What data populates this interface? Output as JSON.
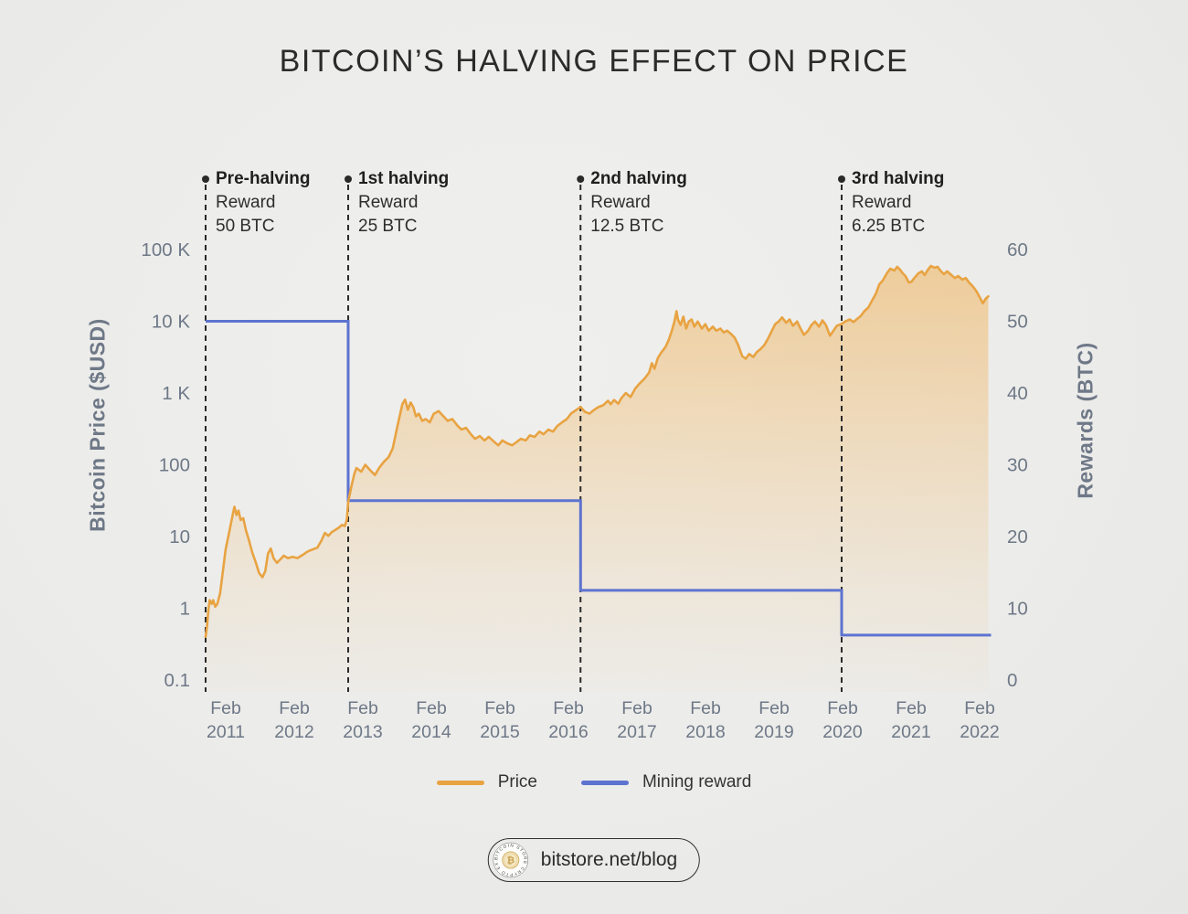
{
  "title": "BITCOIN’S HALVING EFFECT ON PRICE",
  "colors": {
    "background": "#ECECEA",
    "title_text": "#2B2B2B",
    "axis_text": "#6E7887",
    "annotation_text": "#2D2D2D",
    "price_line": "#E8A342",
    "price_fill": "#F0B054",
    "reward_line": "#5D73D0",
    "halving_line": "#2A2A2A",
    "footer_border": "#2F2F2F",
    "coin_gold": "#D2AF62"
  },
  "halvings": [
    {
      "title": "Pre-halving",
      "reward_label": "Reward",
      "amount": "50 BTC",
      "year": 2010.79,
      "reward_btc": 50
    },
    {
      "title": "1st halving",
      "reward_label": "Reward",
      "amount": "25 BTC",
      "year": 2012.87,
      "reward_btc": 25
    },
    {
      "title": "2nd halving",
      "reward_label": "Reward",
      "amount": "12.5 BTC",
      "year": 2016.26,
      "reward_btc": 12.5
    },
    {
      "title": "3rd halving",
      "reward_label": "Reward",
      "amount": "6.25 BTC",
      "year": 2020.07,
      "reward_btc": 6.25
    }
  ],
  "legend": {
    "items": [
      {
        "label": "Price",
        "color": "#E8A342"
      },
      {
        "label": "Mining reward",
        "color": "#5D73D0"
      }
    ]
  },
  "footer": {
    "url": "bitstore.net/blog",
    "logo_ring_text": "BITCOIN STORE CRYPTO EXCHANGE",
    "logo_symbol": "₿"
  },
  "chart_data": {
    "type": "line",
    "title": "BITCOIN’S HALVING EFFECT ON PRICE",
    "grid": false,
    "legend_position": "bottom",
    "x_axis": {
      "month_label": "Feb",
      "years": [
        2011,
        2012,
        2013,
        2014,
        2015,
        2016,
        2017,
        2018,
        2019,
        2020,
        2021,
        2022
      ],
      "range_years": [
        2010.79,
        2022.25
      ]
    },
    "y_left": {
      "label": "Bitcoin Price ($USD)",
      "scale": "log",
      "tick_values": [
        100000,
        10000,
        1000,
        100,
        10,
        1,
        0.1
      ],
      "tick_labels": [
        "100 K",
        "10 K",
        "1 K",
        "100",
        "10",
        "1",
        "0.1"
      ],
      "range": [
        0.1,
        100000
      ]
    },
    "y_right": {
      "label": "Rewards (BTC)",
      "scale": "linear",
      "tick_values": [
        60,
        50,
        40,
        30,
        20,
        10,
        0
      ],
      "range": [
        0,
        60
      ]
    },
    "series": [
      {
        "name": "Price",
        "axis": "left",
        "type": "area-line",
        "color": "#E8A342",
        "points": [
          [
            2010.79,
            0.4
          ],
          [
            2010.81,
            0.55
          ],
          [
            2010.83,
            0.95
          ],
          [
            2010.85,
            1.3
          ],
          [
            2010.88,
            1.15
          ],
          [
            2010.9,
            1.3
          ],
          [
            2010.93,
            1.05
          ],
          [
            2010.96,
            1.15
          ],
          [
            2011.0,
            1.6
          ],
          [
            2011.04,
            3.2
          ],
          [
            2011.08,
            6.5
          ],
          [
            2011.13,
            11
          ],
          [
            2011.17,
            17
          ],
          [
            2011.21,
            26
          ],
          [
            2011.24,
            20
          ],
          [
            2011.27,
            23
          ],
          [
            2011.3,
            17
          ],
          [
            2011.34,
            18
          ],
          [
            2011.38,
            12
          ],
          [
            2011.42,
            9
          ],
          [
            2011.47,
            6
          ],
          [
            2011.52,
            4.4
          ],
          [
            2011.57,
            3.1
          ],
          [
            2011.62,
            2.7
          ],
          [
            2011.66,
            3.3
          ],
          [
            2011.7,
            5.8
          ],
          [
            2011.74,
            6.8
          ],
          [
            2011.78,
            5.0
          ],
          [
            2011.83,
            4.3
          ],
          [
            2011.88,
            4.8
          ],
          [
            2011.93,
            5.4
          ],
          [
            2011.99,
            5.0
          ],
          [
            2012.06,
            5.2
          ],
          [
            2012.13,
            5.0
          ],
          [
            2012.2,
            5.5
          ],
          [
            2012.28,
            6.2
          ],
          [
            2012.35,
            6.6
          ],
          [
            2012.42,
            7.0
          ],
          [
            2012.48,
            8.8
          ],
          [
            2012.53,
            11.2
          ],
          [
            2012.58,
            10.2
          ],
          [
            2012.63,
            11.5
          ],
          [
            2012.68,
            12.3
          ],
          [
            2012.73,
            13.2
          ],
          [
            2012.78,
            14.5
          ],
          [
            2012.82,
            14.0
          ],
          [
            2012.85,
            17
          ],
          [
            2012.87,
            30
          ],
          [
            2012.92,
            52
          ],
          [
            2012.96,
            75
          ],
          [
            2012.99,
            90
          ],
          [
            2013.06,
            80
          ],
          [
            2013.12,
            100
          ],
          [
            2013.19,
            84
          ],
          [
            2013.26,
            72
          ],
          [
            2013.32,
            90
          ],
          [
            2013.39,
            110
          ],
          [
            2013.46,
            128
          ],
          [
            2013.52,
            170
          ],
          [
            2013.59,
            350
          ],
          [
            2013.66,
            700
          ],
          [
            2013.7,
            810
          ],
          [
            2013.74,
            585
          ],
          [
            2013.78,
            740
          ],
          [
            2013.82,
            635
          ],
          [
            2013.86,
            473
          ],
          [
            2013.9,
            515
          ],
          [
            2013.95,
            410
          ],
          [
            2014.0,
            434
          ],
          [
            2014.06,
            390
          ],
          [
            2014.12,
            515
          ],
          [
            2014.19,
            560
          ],
          [
            2014.26,
            473
          ],
          [
            2014.32,
            410
          ],
          [
            2014.39,
            434
          ],
          [
            2014.46,
            355
          ],
          [
            2014.52,
            310
          ],
          [
            2014.59,
            327
          ],
          [
            2014.66,
            266
          ],
          [
            2014.72,
            230
          ],
          [
            2014.79,
            251
          ],
          [
            2014.86,
            218
          ],
          [
            2014.92,
            245
          ],
          [
            2014.99,
            213
          ],
          [
            2015.06,
            187
          ],
          [
            2015.12,
            218
          ],
          [
            2015.19,
            199
          ],
          [
            2015.26,
            187
          ],
          [
            2015.32,
            205
          ],
          [
            2015.39,
            230
          ],
          [
            2015.46,
            218
          ],
          [
            2015.52,
            257
          ],
          [
            2015.59,
            245
          ],
          [
            2015.66,
            290
          ],
          [
            2015.72,
            266
          ],
          [
            2015.79,
            308
          ],
          [
            2015.86,
            290
          ],
          [
            2015.92,
            347
          ],
          [
            2015.99,
            390
          ],
          [
            2016.06,
            434
          ],
          [
            2016.12,
            515
          ],
          [
            2016.19,
            575
          ],
          [
            2016.26,
            640
          ],
          [
            2016.32,
            550
          ],
          [
            2016.39,
            515
          ],
          [
            2016.46,
            585
          ],
          [
            2016.52,
            637
          ],
          [
            2016.59,
            675
          ],
          [
            2016.66,
            780
          ],
          [
            2016.7,
            700
          ],
          [
            2016.75,
            800
          ],
          [
            2016.81,
            710
          ],
          [
            2016.86,
            855
          ],
          [
            2016.92,
            1000
          ],
          [
            2016.99,
            880
          ],
          [
            2017.06,
            1160
          ],
          [
            2017.12,
            1350
          ],
          [
            2017.19,
            1570
          ],
          [
            2017.26,
            1930
          ],
          [
            2017.3,
            2600
          ],
          [
            2017.34,
            2180
          ],
          [
            2017.39,
            3100
          ],
          [
            2017.44,
            3700
          ],
          [
            2017.5,
            4400
          ],
          [
            2017.55,
            5600
          ],
          [
            2017.59,
            7250
          ],
          [
            2017.63,
            9900
          ],
          [
            2017.66,
            13800
          ],
          [
            2017.68,
            10600
          ],
          [
            2017.72,
            8900
          ],
          [
            2017.76,
            11600
          ],
          [
            2017.8,
            7900
          ],
          [
            2017.84,
            9900
          ],
          [
            2017.88,
            10600
          ],
          [
            2017.92,
            8400
          ],
          [
            2017.97,
            9900
          ],
          [
            2018.03,
            7900
          ],
          [
            2018.08,
            9100
          ],
          [
            2018.13,
            7400
          ],
          [
            2018.19,
            8400
          ],
          [
            2018.24,
            7400
          ],
          [
            2018.3,
            7900
          ],
          [
            2018.35,
            7000
          ],
          [
            2018.4,
            7400
          ],
          [
            2018.46,
            6600
          ],
          [
            2018.51,
            5900
          ],
          [
            2018.56,
            4650
          ],
          [
            2018.62,
            3270
          ],
          [
            2018.67,
            3000
          ],
          [
            2018.72,
            3500
          ],
          [
            2018.78,
            3180
          ],
          [
            2018.83,
            3700
          ],
          [
            2018.88,
            4050
          ],
          [
            2018.94,
            4650
          ],
          [
            2018.99,
            5600
          ],
          [
            2019.04,
            7000
          ],
          [
            2019.1,
            9100
          ],
          [
            2019.15,
            9900
          ],
          [
            2019.2,
            11300
          ],
          [
            2019.26,
            9550
          ],
          [
            2019.31,
            10600
          ],
          [
            2019.36,
            8650
          ],
          [
            2019.42,
            9900
          ],
          [
            2019.47,
            7900
          ],
          [
            2019.52,
            6450
          ],
          [
            2019.58,
            7400
          ],
          [
            2019.63,
            8900
          ],
          [
            2019.68,
            9900
          ],
          [
            2019.74,
            8400
          ],
          [
            2019.79,
            10300
          ],
          [
            2019.84,
            8900
          ],
          [
            2019.9,
            6300
          ],
          [
            2019.95,
            7400
          ],
          [
            2020.0,
            8650
          ],
          [
            2020.07,
            9150
          ],
          [
            2020.12,
            9900
          ],
          [
            2020.19,
            10600
          ],
          [
            2020.24,
            9750
          ],
          [
            2020.3,
            10900
          ],
          [
            2020.35,
            11900
          ],
          [
            2020.4,
            13800
          ],
          [
            2020.46,
            15600
          ],
          [
            2020.51,
            19200
          ],
          [
            2020.57,
            24300
          ],
          [
            2020.62,
            32700
          ],
          [
            2020.67,
            37000
          ],
          [
            2020.73,
            46700
          ],
          [
            2020.78,
            54200
          ],
          [
            2020.84,
            51000
          ],
          [
            2020.88,
            57500
          ],
          [
            2020.92,
            52600
          ],
          [
            2020.96,
            46700
          ],
          [
            2021.0,
            42700
          ],
          [
            2021.05,
            34700
          ],
          [
            2021.09,
            35600
          ],
          [
            2021.13,
            40100
          ],
          [
            2021.19,
            46700
          ],
          [
            2021.24,
            49600
          ],
          [
            2021.28,
            44100
          ],
          [
            2021.32,
            51000
          ],
          [
            2021.37,
            59000
          ],
          [
            2021.43,
            55800
          ],
          [
            2021.47,
            57500
          ],
          [
            2021.51,
            51000
          ],
          [
            2021.56,
            45400
          ],
          [
            2021.61,
            49600
          ],
          [
            2021.67,
            44100
          ],
          [
            2021.72,
            40100
          ],
          [
            2021.77,
            42700
          ],
          [
            2021.83,
            38100
          ],
          [
            2021.88,
            40100
          ],
          [
            2021.93,
            34700
          ],
          [
            2021.99,
            30100
          ],
          [
            2022.04,
            25900
          ],
          [
            2022.09,
            21100
          ],
          [
            2022.13,
            17800
          ],
          [
            2022.17,
            20500
          ],
          [
            2022.21,
            22300
          ]
        ]
      },
      {
        "name": "Mining reward",
        "axis": "right",
        "type": "step",
        "color": "#5D73D0",
        "points": [
          [
            2010.79,
            50
          ],
          [
            2012.87,
            50
          ],
          [
            2012.87,
            25
          ],
          [
            2016.26,
            25
          ],
          [
            2016.26,
            12.5
          ],
          [
            2020.07,
            12.5
          ],
          [
            2020.07,
            6.25
          ],
          [
            2022.25,
            6.25
          ]
        ]
      }
    ]
  }
}
